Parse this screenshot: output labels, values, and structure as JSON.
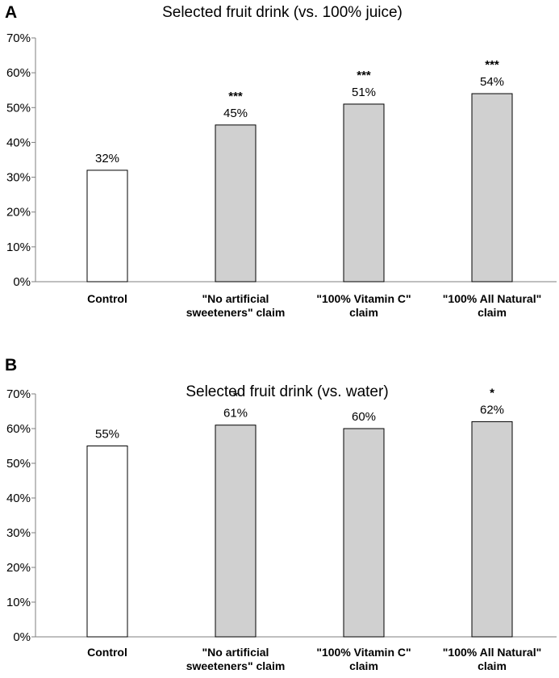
{
  "chart_data": [
    {
      "type": "bar",
      "panel_label": "A",
      "title": "Selected fruit drink (vs. 100% juice)",
      "categories": [
        [
          "Control"
        ],
        [
          "\"No artificial",
          "sweeteners\" claim"
        ],
        [
          "\"100% Vitamin C\"",
          "claim"
        ],
        [
          "\"100% All Natural\"",
          "claim"
        ]
      ],
      "values": [
        32,
        45,
        51,
        54
      ],
      "value_labels": [
        "32%",
        "45%",
        "51%",
        "54%"
      ],
      "significance": [
        "",
        "***",
        "***",
        "***"
      ],
      "bar_fill": [
        "#ffffff",
        "#d0d0d0",
        "#d0d0d0",
        "#d0d0d0"
      ],
      "ylim": [
        0,
        70
      ],
      "yticks": [
        0,
        10,
        20,
        30,
        40,
        50,
        60,
        70
      ],
      "ytick_labels": [
        "0%",
        "10%",
        "20%",
        "30%",
        "40%",
        "50%",
        "60%",
        "70%"
      ],
      "xlabel": "",
      "ylabel": "",
      "grid": false
    },
    {
      "type": "bar",
      "panel_label": "B",
      "title": "Selected fruit drink (vs. water)",
      "categories": [
        [
          "Control"
        ],
        [
          "\"No artificial",
          "sweeteners\" claim"
        ],
        [
          "\"100% Vitamin C\"",
          "claim"
        ],
        [
          "\"100% All Natural\"",
          "claim"
        ]
      ],
      "values": [
        55,
        61,
        60,
        62
      ],
      "value_labels": [
        "55%",
        "61%",
        "60%",
        "62%"
      ],
      "significance": [
        "",
        "*",
        "",
        "*"
      ],
      "bar_fill": [
        "#ffffff",
        "#d0d0d0",
        "#d0d0d0",
        "#d0d0d0"
      ],
      "ylim": [
        0,
        70
      ],
      "yticks": [
        0,
        10,
        20,
        30,
        40,
        50,
        60,
        70
      ],
      "ytick_labels": [
        "0%",
        "10%",
        "20%",
        "30%",
        "40%",
        "50%",
        "60%",
        "70%"
      ],
      "xlabel": "",
      "ylabel": "",
      "grid": false
    }
  ]
}
